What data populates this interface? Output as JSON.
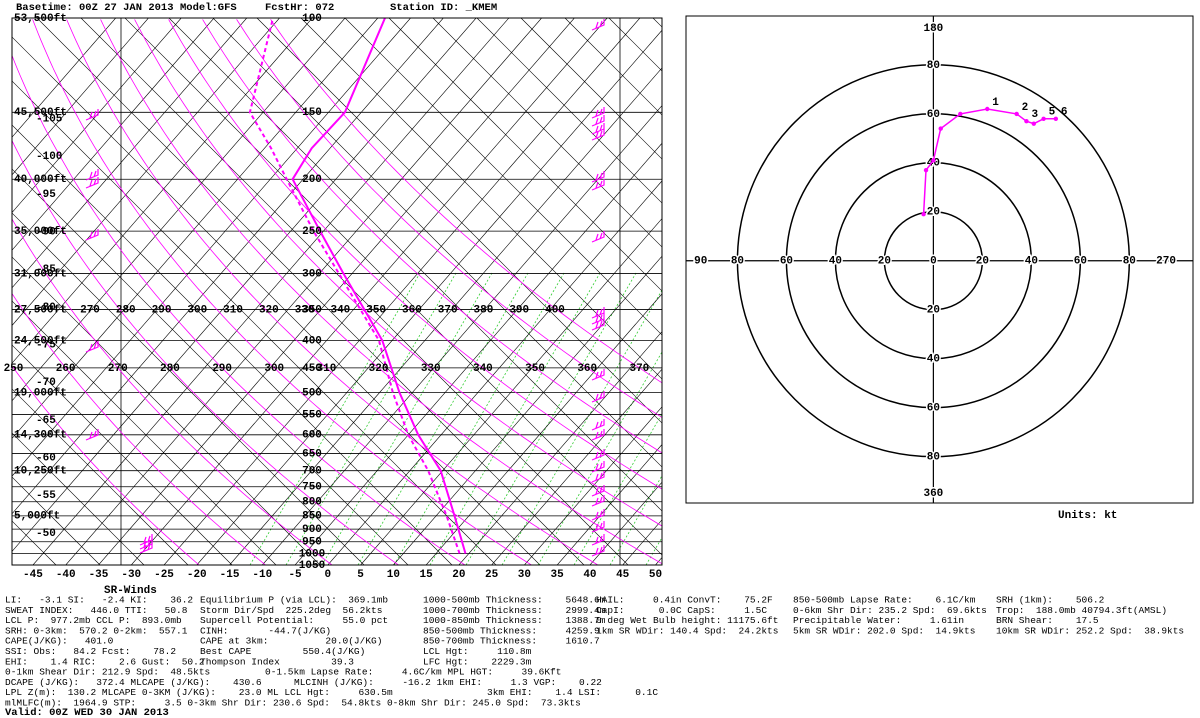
{
  "header": {
    "basetime": "Basetime: 00Z 27 JAN 2013",
    "model": "Model:GFS",
    "fcsthr": "FcstHr: 072",
    "station": "Station ID: _KMEM"
  },
  "chart_data": [
    {
      "type": "skewt",
      "xlim": [
        -48.2,
        51
      ],
      "xticks": [
        -45,
        -40,
        -35,
        -30,
        -25,
        -20,
        -15,
        -10,
        -5,
        0,
        5,
        10,
        15,
        20,
        25,
        30,
        35,
        40,
        45,
        50
      ],
      "ylim": [
        1050,
        100
      ],
      "log_y": true,
      "yticks": [
        100,
        150,
        200,
        250,
        300,
        350,
        400,
        450,
        500,
        550,
        600,
        650,
        700,
        750,
        800,
        850,
        900,
        950,
        1000,
        1050
      ],
      "height_ticks": [
        {
          "value": 100,
          "label": "53,500ft"
        },
        {
          "value": 150,
          "label": "45,500ft"
        },
        {
          "value": 200,
          "label": "40,000ft"
        },
        {
          "value": 250,
          "label": "35,000ft"
        },
        {
          "value": 300,
          "label": "31,000ft"
        },
        {
          "value": 350,
          "label": "27,500ft"
        },
        {
          "value": 400,
          "label": "24,500ft"
        },
        {
          "value": 500,
          "label": "19,000ft"
        },
        {
          "value": 600,
          "label": "14,300ft"
        },
        {
          "value": 700,
          "label": "10,250ft"
        },
        {
          "value": 850,
          "label": "5,000ft"
        }
      ],
      "isotherm_labels": [
        -105,
        -100,
        -95,
        -90,
        -85,
        -80,
        -75,
        -70,
        -65,
        -60,
        -55,
        -50
      ],
      "theta_labels_upper": [
        270,
        280,
        290,
        300,
        310,
        320,
        330,
        340,
        350,
        360,
        370,
        380,
        390,
        400
      ],
      "theta_labels_lower": [
        250,
        260,
        270,
        280,
        290,
        300,
        310,
        320,
        330,
        340,
        350,
        360,
        370
      ],
      "pressure": [
        1000,
        850,
        700,
        600,
        500,
        400,
        300,
        250,
        200,
        175,
        150,
        100
      ],
      "series": [
        {
          "color": "#ff00ff",
          "style": "solid",
          "values": [
            19.5,
            12.8,
            4.7,
            -3.5,
            -12,
            -21.5,
            -36.3,
            -45.5,
            -56.6,
            -57.8,
            -57.5,
            -63.9
          ]
        },
        {
          "color": "#ff00ff",
          "style": "dashed",
          "values": [
            18.6,
            11.6,
            2.8,
            -5,
            -13,
            -22,
            -37,
            -46.5,
            -57.5,
            -64,
            -72,
            -81
          ]
        }
      ]
    },
    {
      "type": "hodograph",
      "xlim": [
        -101,
        106
      ],
      "ylim": [
        -99,
        100
      ],
      "xticks": [
        {
          "value": -95,
          "label": "90"
        },
        {
          "value": -80,
          "label": "80"
        },
        {
          "value": -60,
          "label": "60"
        },
        {
          "value": -40,
          "label": "40"
        },
        {
          "value": -20,
          "label": "20"
        },
        0,
        20,
        40,
        60,
        80,
        {
          "value": 95,
          "label": "270"
        }
      ],
      "yticks": [
        {
          "value": -95,
          "label": "360"
        },
        {
          "value": -80,
          "label": "80"
        },
        {
          "value": -60,
          "label": "60"
        },
        {
          "value": -40,
          "label": "40"
        },
        {
          "value": -20,
          "label": "20"
        },
        20,
        40,
        60,
        80,
        {
          "value": 95,
          "label": "180"
        }
      ],
      "x": [
        -4,
        -3,
        0,
        3,
        11,
        22,
        34,
        38,
        41,
        45,
        50
      ],
      "values": [
        19,
        37,
        41,
        54,
        60,
        62,
        60,
        57,
        56,
        58,
        58
      ],
      "point_labels": [
        null,
        null,
        null,
        null,
        null,
        "1",
        "2",
        "3",
        null,
        "5",
        "6"
      ],
      "color": "#ff00ff",
      "units": "Units: kt"
    }
  ],
  "stats": {
    "title": "SR-Winds",
    "rows": [
      [
        "LI:   -3.1 SI:   -2.4 KI:    36.2",
        "Equilibrium P (via LCL):  369.1mb",
        "1000-500mb Thickness:    5648.6m",
        "HAIL:     0.4in ConvT:    75.2F",
        "850-500mb Lapse Rate:    6.1C/km",
        "SRH (1km):    506.2"
      ],
      [
        "SWEAT INDEX:   446.0 TTI:   50.8",
        "Storm Dir/Spd  225.2deg  56.2kts",
        "1000-700mb Thickness:    2999.4m",
        "CapI:      0.0C CapS:     1.5C",
        "0-6km Shr Dir: 235.2 Spd:  69.6kts",
        "Trop:  188.0mb 40794.3ft(AMSL)"
      ],
      [
        "LCL P:  977.2mb CCL P:  893.0mb",
        "Supercell Potential:     55.0 pct",
        "1000-850mb Thickness:    1388.7m",
        "0 deg Wet Bulb height: 11175.6ft",
        "Precipitable Water:     1.61in",
        "BRN Shear:    17.5"
      ],
      [
        "SRH: 0-3km:  570.2 0-2km:  557.1",
        "CINH:       -44.7(J/KG)",
        "850-500mb Thickness:     4259.9",
        "1km SR WDir: 140.4 Spd:  24.2kts",
        "5km SR WDir: 202.0 Spd:  14.9kts",
        "10km SR WDir: 252.2 Spd:  38.9kts"
      ],
      [
        "CAPE(J/KG):   401.0",
        "CAPE at 3km:          20.0(J/KG)",
        "850-700mb Thickness:     1610.7"
      ],
      [
        "SSI: Obs:   84.2 Fcst:    78.2",
        "Best CAPE         550.4(J/KG)",
        "LCL Hgt:     110.8m"
      ],
      [
        "EHI:    1.4 RIC:    2.6 Gust:  50.2",
        "Thompson Index         39.3",
        "LFC Hgt:    2229.3m"
      ],
      [
        "0-1km Shear Dir: 212.9 Spd:  48.5kts",
        "0-1.5km Lapse Rate:     4.6C/km MPL HGT:     39.6Kft"
      ],
      [
        "DCAPE (J/KG):   372.4 MLCAPE (J/KG):    430.6",
        "MLCINH (J/KG):     -16.2 1km EHI:     1.3 VGP:    0.22"
      ],
      [
        "LPL Z(m):  130.2 MLCAPE 0-3KM (J/KG):    23.0 ML LCL Hgt:     630.5m",
        "3km EHI:    1.4 LSI:      0.1C"
      ],
      [
        "mlMLFC(m):  1964.9 STP:     3.5 0-3km Shr Dir: 230.6 Spd:  54.8kts 0-8km Shr Dir: 245.0 Spd:  73.3kts"
      ]
    ],
    "valid": "Valid: 00Z WED 30 JAN 2013"
  }
}
